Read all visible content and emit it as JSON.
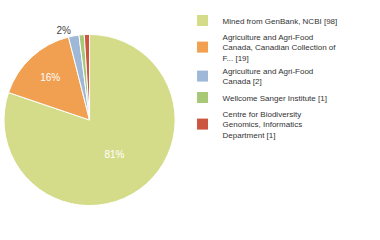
{
  "chart_data": {
    "type": "pie",
    "categories": [
      "Mined from GenBank, NCBI [98]",
      "Agriculture and Agri-Food\nCanada, Canadian Collection of\nF... [19]",
      "Agriculture and Agri-Food\nCanada [2]",
      "Wellcome Sanger Institute [1]",
      "Centre for Biodiversity\nGenomics, Informatics\nDepartment [1]"
    ],
    "values": [
      81,
      16,
      2,
      1,
      1
    ],
    "value_labels": [
      "81%",
      "16%",
      "2%",
      null,
      null
    ],
    "colors": [
      "#d4dc8a",
      "#f0a050",
      "#a0b8d8",
      "#a8c878",
      "#cc5540"
    ],
    "data_labels": true,
    "legend": "upper right"
  }
}
